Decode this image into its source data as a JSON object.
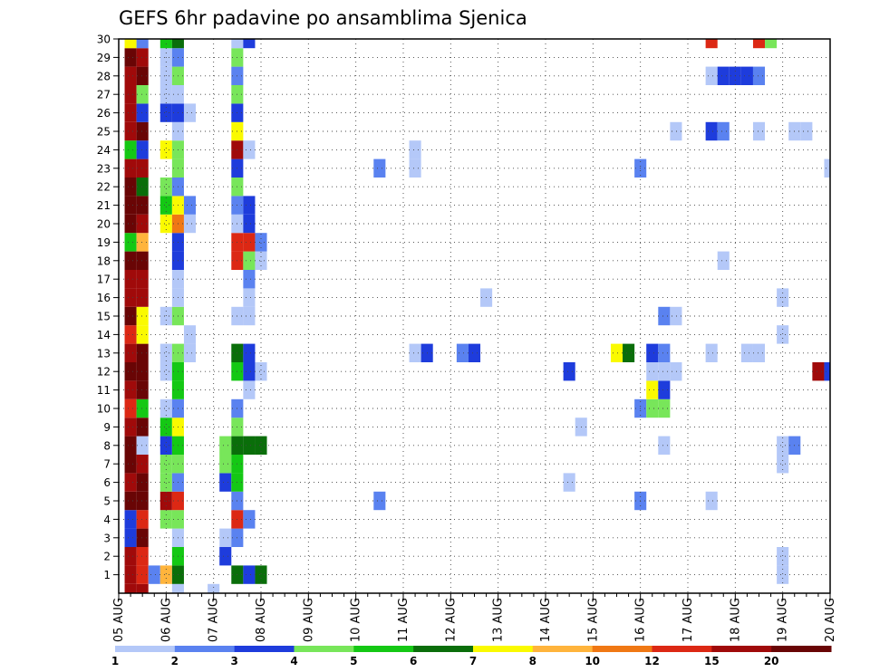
{
  "chart_data": {
    "type": "heatmap",
    "title": "GEFS 6hr padavine po ansamblima Sjenica",
    "xlabel": "",
    "ylabel": "",
    "x_ticks": [
      "05 AUG",
      "06 AUG",
      "07 AUG",
      "08 AUG",
      "09 AUG",
      "10 AUG",
      "11 AUG",
      "12 AUG",
      "13 AUG",
      "14 AUG",
      "15 AUG",
      "16 AUG",
      "17 AUG",
      "18 AUG",
      "19 AUG",
      "20 AUG"
    ],
    "y_ticks": [
      "1",
      "2",
      "3",
      "4",
      "5",
      "6",
      "7",
      "8",
      "9",
      "10",
      "11",
      "12",
      "13",
      "14",
      "15",
      "16",
      "17",
      "18",
      "19",
      "20",
      "21",
      "22",
      "23",
      "24",
      "25",
      "26",
      "27",
      "28",
      "29",
      "30"
    ],
    "xlim": [
      0,
      60
    ],
    "ylim": [
      0,
      30
    ],
    "grid": true,
    "color_levels": [
      "1",
      "2",
      "3",
      "4",
      "5",
      "6",
      "7",
      "8",
      "10",
      "12",
      "15",
      "20"
    ],
    "color_scale": [
      "#b4c8f8",
      "#5a82f0",
      "#1e3cdc",
      "#78e65a",
      "#14c814",
      "#0a6e0a",
      "#fafa00",
      "#ffb43c",
      "#f07814",
      "#dc2814",
      "#a00a0a",
      "#690505"
    ],
    "cells": [
      [
        1,
        0,
        10
      ],
      [
        2,
        0,
        10
      ],
      [
        5,
        0,
        0
      ],
      [
        8,
        0,
        0
      ],
      [
        1,
        1,
        10
      ],
      [
        2,
        1,
        9
      ],
      [
        3,
        1,
        1
      ],
      [
        4,
        1,
        7
      ],
      [
        5,
        1,
        5
      ],
      [
        10,
        1,
        5
      ],
      [
        11,
        1,
        2
      ],
      [
        12,
        1,
        5
      ],
      [
        56,
        1,
        0
      ],
      [
        1,
        2,
        10
      ],
      [
        2,
        2,
        9
      ],
      [
        5,
        2,
        4
      ],
      [
        9,
        2,
        2
      ],
      [
        56,
        2,
        0
      ],
      [
        1,
        3,
        2
      ],
      [
        2,
        3,
        11
      ],
      [
        5,
        3,
        0
      ],
      [
        9,
        3,
        0
      ],
      [
        10,
        3,
        1
      ],
      [
        1,
        4,
        2
      ],
      [
        2,
        4,
        9
      ],
      [
        4,
        4,
        3
      ],
      [
        5,
        4,
        3
      ],
      [
        10,
        4,
        9
      ],
      [
        11,
        4,
        1
      ],
      [
        1,
        5,
        11
      ],
      [
        2,
        5,
        11
      ],
      [
        4,
        5,
        10
      ],
      [
        5,
        5,
        9
      ],
      [
        10,
        5,
        1
      ],
      [
        22,
        5,
        1
      ],
      [
        44,
        5,
        1
      ],
      [
        50,
        5,
        0
      ],
      [
        1,
        6,
        10
      ],
      [
        2,
        6,
        11
      ],
      [
        4,
        6,
        3
      ],
      [
        5,
        6,
        1
      ],
      [
        9,
        6,
        2
      ],
      [
        10,
        6,
        4
      ],
      [
        38,
        6,
        0
      ],
      [
        1,
        7,
        11
      ],
      [
        2,
        7,
        10
      ],
      [
        4,
        7,
        3
      ],
      [
        5,
        7,
        3
      ],
      [
        9,
        7,
        3
      ],
      [
        10,
        7,
        4
      ],
      [
        56,
        7,
        0
      ],
      [
        1,
        8,
        11
      ],
      [
        2,
        8,
        0
      ],
      [
        4,
        8,
        2
      ],
      [
        5,
        8,
        4
      ],
      [
        9,
        8,
        3
      ],
      [
        10,
        8,
        5
      ],
      [
        11,
        8,
        5
      ],
      [
        12,
        8,
        5
      ],
      [
        46,
        8,
        0
      ],
      [
        56,
        8,
        0
      ],
      [
        57,
        8,
        1
      ],
      [
        1,
        9,
        10
      ],
      [
        2,
        9,
        11
      ],
      [
        4,
        9,
        4
      ],
      [
        5,
        9,
        6
      ],
      [
        10,
        9,
        3
      ],
      [
        39,
        9,
        0
      ],
      [
        1,
        10,
        9
      ],
      [
        2,
        10,
        4
      ],
      [
        4,
        10,
        0
      ],
      [
        5,
        10,
        1
      ],
      [
        10,
        10,
        1
      ],
      [
        44,
        10,
        1
      ],
      [
        45,
        10,
        3
      ],
      [
        46,
        10,
        3
      ],
      [
        1,
        11,
        10
      ],
      [
        2,
        11,
        11
      ],
      [
        5,
        11,
        4
      ],
      [
        11,
        11,
        0
      ],
      [
        45,
        11,
        6
      ],
      [
        46,
        11,
        2
      ],
      [
        1,
        12,
        11
      ],
      [
        2,
        12,
        11
      ],
      [
        4,
        12,
        0
      ],
      [
        5,
        12,
        4
      ],
      [
        10,
        12,
        4
      ],
      [
        11,
        12,
        2
      ],
      [
        12,
        12,
        0
      ],
      [
        38,
        12,
        2
      ],
      [
        45,
        12,
        0
      ],
      [
        46,
        12,
        0
      ],
      [
        47,
        12,
        0
      ],
      [
        59,
        12,
        10
      ],
      [
        60,
        12,
        2
      ],
      [
        1,
        13,
        10
      ],
      [
        2,
        13,
        11
      ],
      [
        4,
        13,
        0
      ],
      [
        5,
        13,
        3
      ],
      [
        6,
        13,
        0
      ],
      [
        10,
        13,
        5
      ],
      [
        11,
        13,
        2
      ],
      [
        25,
        13,
        0
      ],
      [
        26,
        13,
        2
      ],
      [
        29,
        13,
        1
      ],
      [
        30,
        13,
        2
      ],
      [
        42,
        13,
        6
      ],
      [
        43,
        13,
        5
      ],
      [
        45,
        13,
        2
      ],
      [
        46,
        13,
        1
      ],
      [
        50,
        13,
        0
      ],
      [
        53,
        13,
        0
      ],
      [
        54,
        13,
        0
      ],
      [
        1,
        14,
        9
      ],
      [
        2,
        14,
        6
      ],
      [
        6,
        14,
        0
      ],
      [
        56,
        14,
        0
      ],
      [
        1,
        15,
        11
      ],
      [
        2,
        15,
        6
      ],
      [
        4,
        15,
        0
      ],
      [
        5,
        15,
        3
      ],
      [
        10,
        15,
        0
      ],
      [
        11,
        15,
        0
      ],
      [
        46,
        15,
        1
      ],
      [
        47,
        15,
        0
      ],
      [
        1,
        16,
        10
      ],
      [
        2,
        16,
        10
      ],
      [
        5,
        16,
        0
      ],
      [
        11,
        16,
        0
      ],
      [
        31,
        16,
        0
      ],
      [
        56,
        16,
        0
      ],
      [
        1,
        17,
        10
      ],
      [
        2,
        17,
        10
      ],
      [
        5,
        17,
        0
      ],
      [
        11,
        17,
        1
      ],
      [
        1,
        18,
        11
      ],
      [
        2,
        18,
        11
      ],
      [
        5,
        18,
        2
      ],
      [
        10,
        18,
        9
      ],
      [
        11,
        18,
        3
      ],
      [
        12,
        18,
        0
      ],
      [
        51,
        18,
        0
      ],
      [
        1,
        19,
        4
      ],
      [
        2,
        19,
        7
      ],
      [
        5,
        19,
        2
      ],
      [
        10,
        19,
        9
      ],
      [
        11,
        19,
        9
      ],
      [
        12,
        19,
        1
      ],
      [
        1,
        20,
        11
      ],
      [
        2,
        20,
        10
      ],
      [
        4,
        20,
        6
      ],
      [
        5,
        20,
        8
      ],
      [
        6,
        20,
        0
      ],
      [
        10,
        20,
        0
      ],
      [
        11,
        20,
        2
      ],
      [
        1,
        21,
        11
      ],
      [
        2,
        21,
        11
      ],
      [
        4,
        21,
        4
      ],
      [
        5,
        21,
        6
      ],
      [
        6,
        21,
        1
      ],
      [
        10,
        21,
        1
      ],
      [
        11,
        21,
        2
      ],
      [
        1,
        22,
        11
      ],
      [
        2,
        22,
        5
      ],
      [
        4,
        22,
        3
      ],
      [
        5,
        22,
        1
      ],
      [
        10,
        22,
        3
      ],
      [
        1,
        23,
        10
      ],
      [
        2,
        23,
        10
      ],
      [
        5,
        23,
        3
      ],
      [
        10,
        23,
        2
      ],
      [
        22,
        23,
        1
      ],
      [
        25,
        23,
        0
      ],
      [
        44,
        23,
        1
      ],
      [
        60,
        23,
        0
      ],
      [
        1,
        24,
        4
      ],
      [
        2,
        24,
        2
      ],
      [
        4,
        24,
        6
      ],
      [
        5,
        24,
        3
      ],
      [
        10,
        24,
        10
      ],
      [
        11,
        24,
        0
      ],
      [
        25,
        24,
        0
      ],
      [
        1,
        25,
        10
      ],
      [
        2,
        25,
        11
      ],
      [
        5,
        25,
        0
      ],
      [
        10,
        25,
        6
      ],
      [
        47,
        25,
        0
      ],
      [
        50,
        25,
        2
      ],
      [
        51,
        25,
        1
      ],
      [
        54,
        25,
        0
      ],
      [
        57,
        25,
        0
      ],
      [
        58,
        25,
        0
      ],
      [
        1,
        26,
        10
      ],
      [
        2,
        26,
        2
      ],
      [
        4,
        26,
        2
      ],
      [
        5,
        26,
        2
      ],
      [
        6,
        26,
        0
      ],
      [
        10,
        26,
        2
      ],
      [
        1,
        27,
        10
      ],
      [
        2,
        27,
        3
      ],
      [
        4,
        27,
        0
      ],
      [
        5,
        27,
        0
      ],
      [
        10,
        27,
        3
      ],
      [
        1,
        28,
        10
      ],
      [
        2,
        28,
        11
      ],
      [
        4,
        28,
        0
      ],
      [
        5,
        28,
        3
      ],
      [
        10,
        28,
        1
      ],
      [
        50,
        28,
        0
      ],
      [
        51,
        28,
        2
      ],
      [
        52,
        28,
        2
      ],
      [
        53,
        28,
        2
      ],
      [
        54,
        28,
        1
      ],
      [
        1,
        29,
        11
      ],
      [
        2,
        29,
        10
      ],
      [
        4,
        29,
        0
      ],
      [
        5,
        29,
        1
      ],
      [
        10,
        29,
        3
      ],
      [
        1,
        30,
        6
      ],
      [
        2,
        30,
        1
      ],
      [
        4,
        30,
        4
      ],
      [
        5,
        30,
        5
      ],
      [
        10,
        30,
        0
      ],
      [
        11,
        30,
        2
      ],
      [
        50,
        30,
        9
      ],
      [
        54,
        30,
        9
      ],
      [
        55,
        30,
        3
      ],
      [
        1,
        31,
        10
      ],
      [
        2,
        31,
        10
      ],
      [
        5,
        31,
        0
      ],
      [
        10,
        31,
        0
      ],
      [
        11,
        31,
        5
      ],
      [
        12,
        31,
        0
      ],
      [
        38,
        31,
        0
      ]
    ]
  }
}
